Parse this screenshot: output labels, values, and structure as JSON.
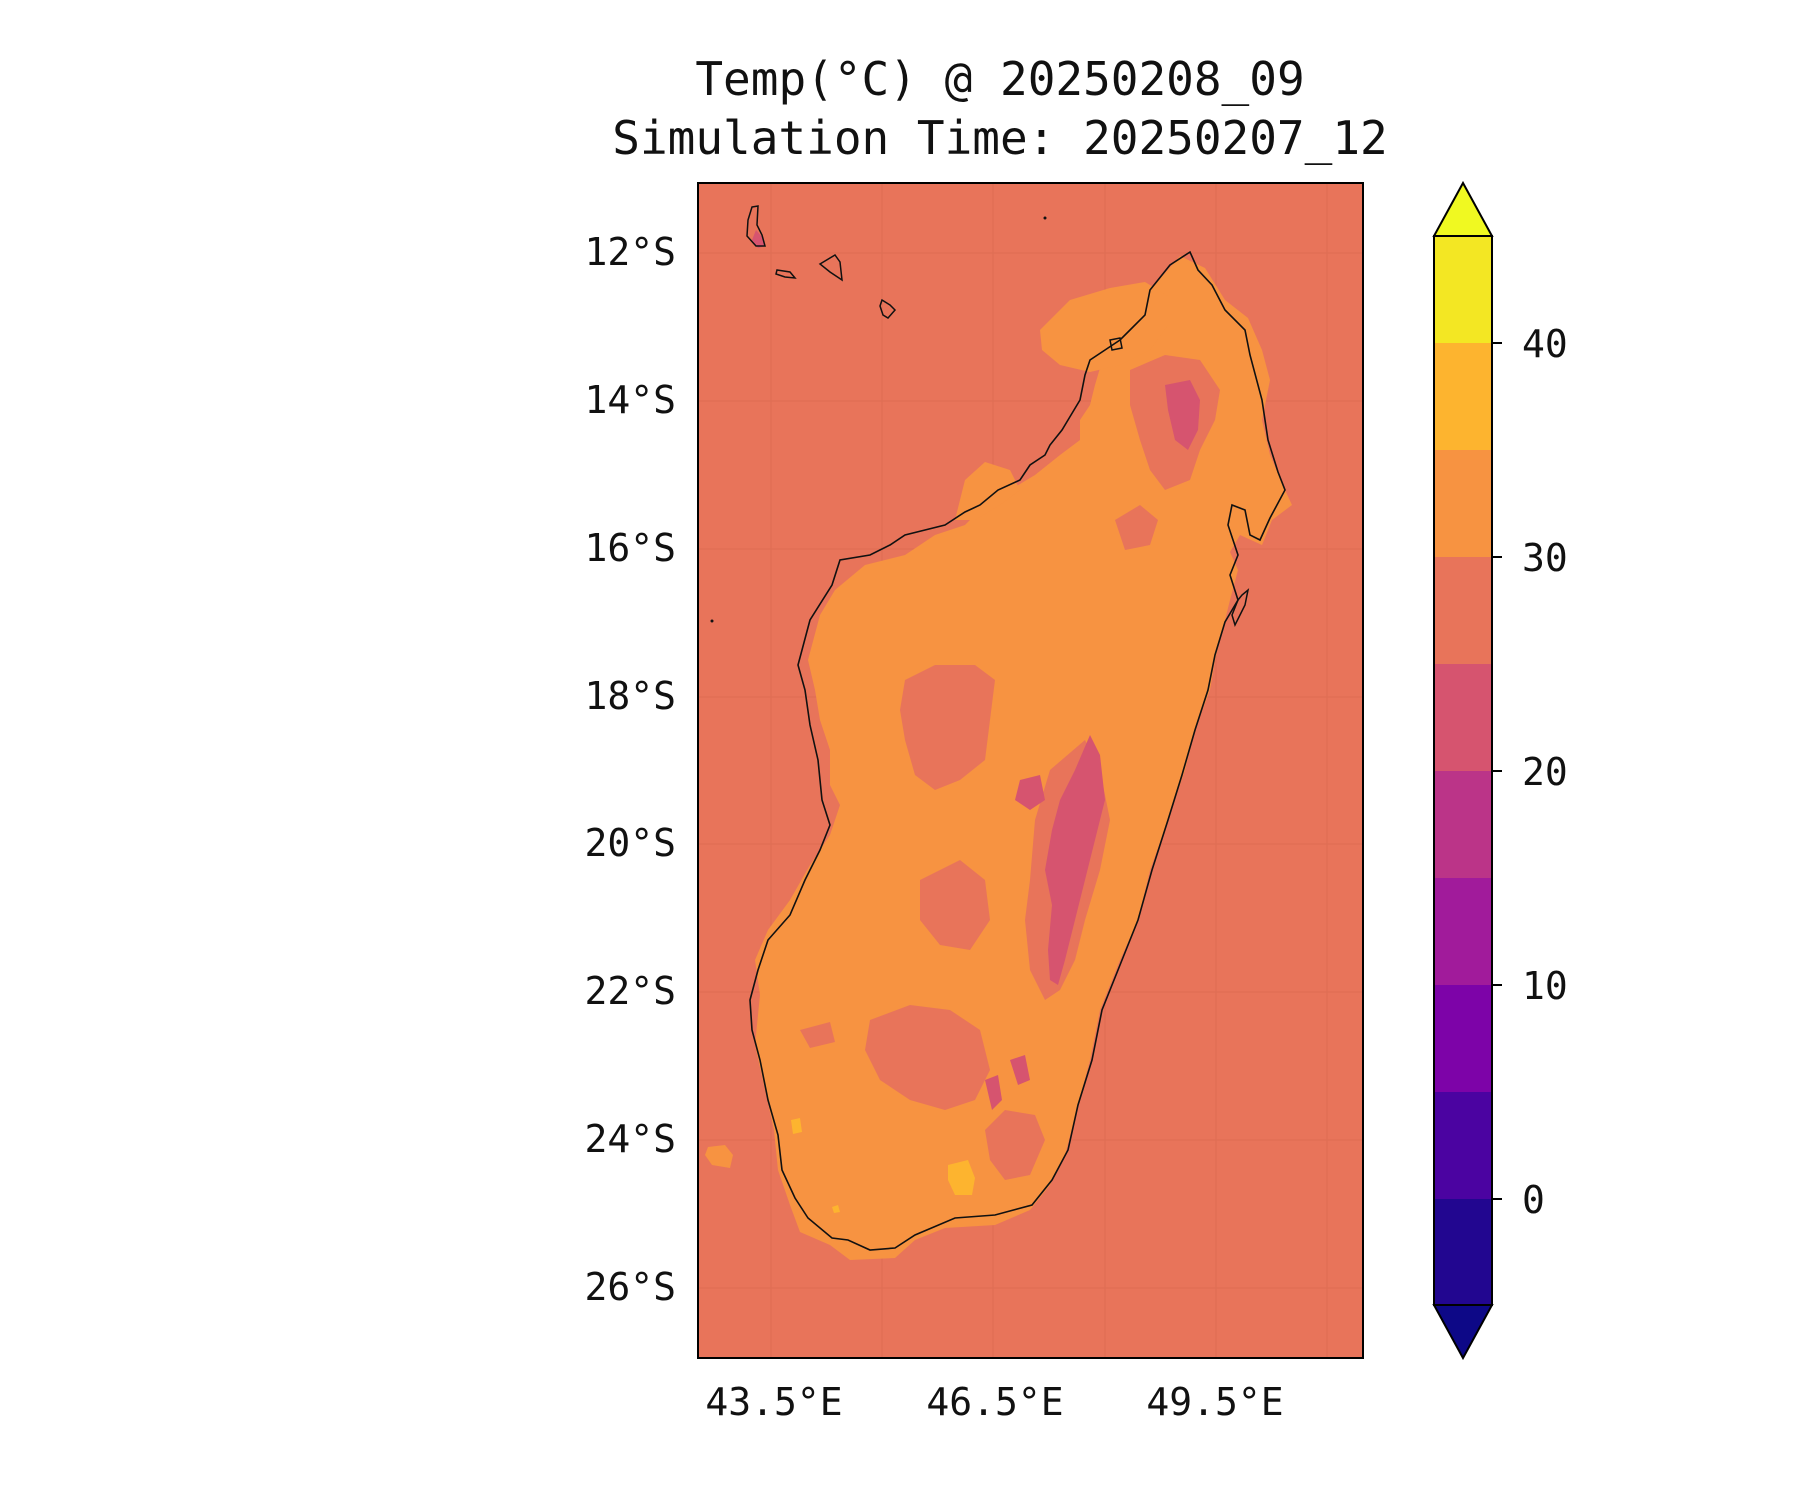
{
  "title": {
    "line1": "Temp(°C) @ 20250208_09",
    "line2": "Simulation Time: 20250207_12"
  },
  "map": {
    "projection": "PlateCarree",
    "lat_ticks": [
      "12°S",
      "14°S",
      "16°S",
      "18°S",
      "20°S",
      "22°S",
      "24°S",
      "26°S"
    ],
    "lat_values": [
      -12,
      -14,
      -16,
      -18,
      -20,
      -22,
      -24,
      -26
    ],
    "lon_ticks": [
      "43.5°E",
      "46.5°E",
      "49.5°E"
    ],
    "lon_values": [
      43.5,
      46.5,
      49.5
    ],
    "extent": {
      "lon_min": 42.5,
      "lon_max": 51.5,
      "lat_min": -26.9,
      "lat_max": -11.05
    },
    "background_value_c": 28,
    "land_dominant_value_c": 32,
    "features": [
      "Madagascar coastline",
      "Comoros islands",
      "Cooler highland band (20-25°C) along the central plateau",
      "Warm spots (35-40°C) in far south-west"
    ]
  },
  "colorbar": {
    "levels": [
      -5,
      0,
      5,
      10,
      15,
      20,
      25,
      30,
      35,
      40,
      45
    ],
    "tick_labels": [
      "0",
      "10",
      "20",
      "30",
      "40"
    ],
    "tick_values": [
      0,
      10,
      20,
      30,
      40
    ],
    "extend": "both",
    "colors": [
      "#1f0c8a",
      "#3f049c",
      "#5c01a6",
      "#7e03a8",
      "#9c179e",
      "#b52f8c",
      "#cc4778",
      "#d85a6a",
      "#e8745a",
      "#f79341",
      "#fdb42f",
      "#f0f921"
    ],
    "bin_colors": {
      "below": "#0d0887",
      "-5..0": "#220690",
      "0..5": "#4b03a1",
      "5..10": "#7d03a8",
      "10..15": "#a11b9b",
      "15..20": "#bb3488",
      "20..25": "#d6546f",
      "25..30": "#e8745a",
      "30..35": "#f79341",
      "35..40": "#fdb42f",
      "40..45": "#f3e723",
      "above": "#f0f921"
    }
  }
}
